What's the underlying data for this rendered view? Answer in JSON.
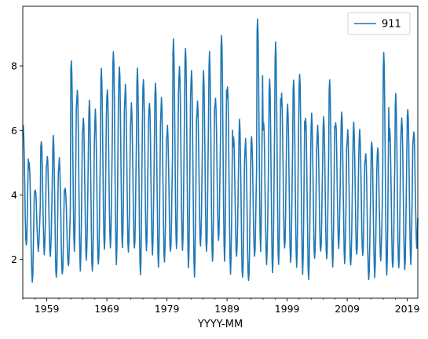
{
  "chart_data": {
    "type": "line",
    "xlabel": "YYYY-MM",
    "ylabel": "",
    "title": "",
    "x_range": [
      "1955-01",
      "2020-12"
    ],
    "xlim": [
      1955.0,
      2020.75
    ],
    "ylim": [
      0.8,
      9.85
    ],
    "yticks": [
      2,
      4,
      6,
      8
    ],
    "xticks": [
      {
        "value": 1959.0,
        "label": "1959"
      },
      {
        "value": 1969.0,
        "label": "1969"
      },
      {
        "value": 1979.0,
        "label": "1979"
      },
      {
        "value": 1989.0,
        "label": "1989"
      },
      {
        "value": 1999.0,
        "label": "1999"
      },
      {
        "value": 2009.0,
        "label": "2009"
      },
      {
        "value": 2019.0,
        "label": "2019"
      }
    ],
    "grid": false,
    "legend_position": "top-right",
    "series": [
      {
        "name": "911",
        "color": "#1f77b4",
        "start_year": 1955,
        "annual_max": [
          6.1,
          5.0,
          4.2,
          5.7,
          5.2,
          5.8,
          5.1,
          4.2,
          8.2,
          7.3,
          6.4,
          6.9,
          6.6,
          7.9,
          7.3,
          8.5,
          8.0,
          7.4,
          6.8,
          7.9,
          7.6,
          6.9,
          7.5,
          7.0,
          6.1,
          8.8,
          8.0,
          8.6,
          7.9,
          6.9,
          7.8,
          8.4,
          7.0,
          9.0,
          7.4,
          5.8,
          6.3,
          5.7,
          5.8,
          9.5,
          6.3,
          7.6,
          8.7,
          7.1,
          6.8,
          7.6,
          7.8,
          6.4,
          6.5,
          6.1,
          6.4,
          7.6,
          6.3,
          6.6,
          6.0,
          6.2,
          6.0,
          5.3,
          5.7,
          5.5,
          8.4,
          6.0,
          7.1,
          6.4,
          6.7,
          6.0
        ],
        "annual_min": [
          2.4,
          1.3,
          2.3,
          2.2,
          2.1,
          1.4,
          1.5,
          1.8,
          2.3,
          1.7,
          2.0,
          1.6,
          1.8,
          2.3,
          2.4,
          1.9,
          2.4,
          2.2,
          2.3,
          1.5,
          2.3,
          2.2,
          1.8,
          1.9,
          2.2,
          2.3,
          2.3,
          1.8,
          1.5,
          2.4,
          2.2,
          1.9,
          2.6,
          2.0,
          1.6,
          2.1,
          1.4,
          1.3,
          2.1,
          2.3,
          1.9,
          1.6,
          1.8,
          2.3,
          1.9,
          1.8,
          1.6,
          1.4,
          2.0,
          2.2,
          2.0,
          1.8,
          2.4,
          1.9,
          1.8,
          2.1,
          2.1,
          1.4,
          1.5,
          2.0,
          1.5,
          1.7,
          1.7,
          1.7,
          1.9,
          2.4
        ]
      }
    ]
  }
}
